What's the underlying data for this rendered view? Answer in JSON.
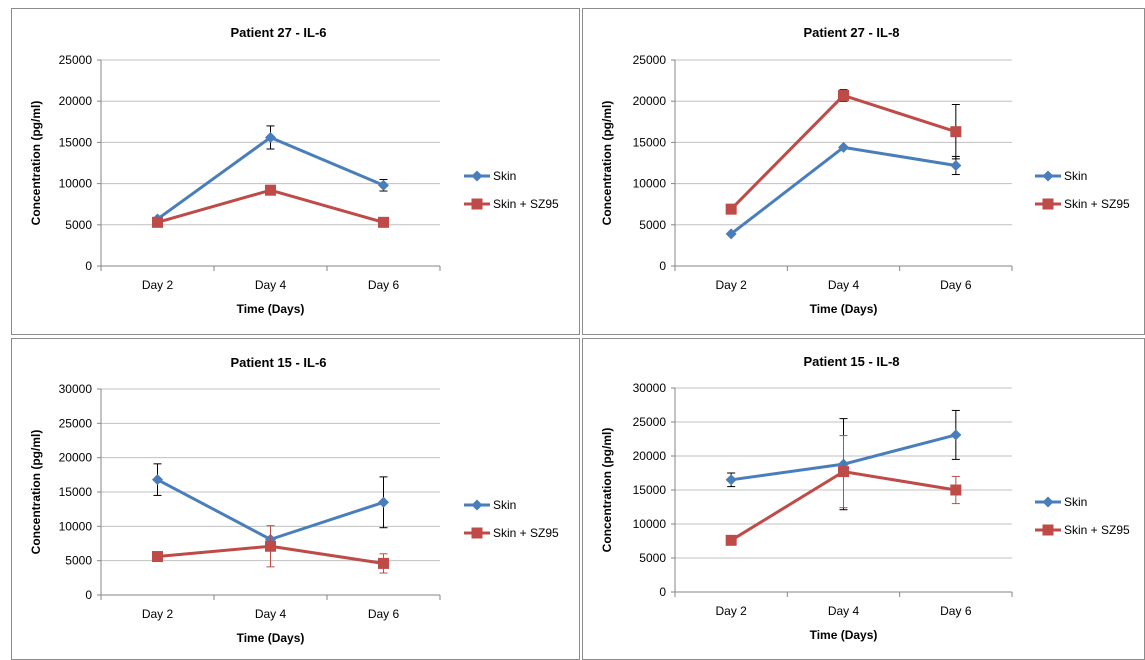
{
  "colors": {
    "skin": "#4a7ebb",
    "skin_sz95": "#be4b48",
    "grid": "#c0c0c0",
    "axis": "#868686",
    "error_bar": "#000000",
    "error_bar_alt": "#be4b48"
  },
  "chart_data": [
    {
      "type": "line",
      "title": "Patient 27 - IL-6",
      "xlabel": "Time (Days)",
      "ylabel": "Concentration (pg/ml)",
      "categories": [
        "Day 2",
        "Day 4",
        "Day 6"
      ],
      "ylim": [
        0,
        25000
      ],
      "yticks": [
        0,
        5000,
        10000,
        15000,
        20000,
        25000
      ],
      "grid": true,
      "legend": "right",
      "series": [
        {
          "name": "Skin",
          "marker": "diamond",
          "values": [
            5700,
            15600,
            9800
          ],
          "errors": [
            0,
            1400,
            700
          ]
        },
        {
          "name": "Skin + SZ95",
          "marker": "square",
          "values": [
            5300,
            9200,
            5300
          ],
          "errors": [
            0,
            0,
            0
          ]
        }
      ]
    },
    {
      "type": "line",
      "title": "Patient 27 - IL-8",
      "xlabel": "Time (Days)",
      "ylabel": "Concentration (pg/ml)",
      "categories": [
        "Day 2",
        "Day 4",
        "Day 6"
      ],
      "ylim": [
        0,
        25000
      ],
      "yticks": [
        0,
        5000,
        10000,
        15000,
        20000,
        25000
      ],
      "grid": true,
      "legend": "right",
      "series": [
        {
          "name": "Skin",
          "marker": "diamond",
          "values": [
            3900,
            14400,
            12200
          ],
          "errors": [
            0,
            0,
            1100
          ]
        },
        {
          "name": "Skin + SZ95",
          "marker": "square",
          "values": [
            6900,
            20700,
            16300
          ],
          "errors": [
            0,
            700,
            3300
          ]
        }
      ]
    },
    {
      "type": "line",
      "title": "Patient 15 - IL-6",
      "xlabel": "Time (Days)",
      "ylabel": "Concentration (pg/ml)",
      "categories": [
        "Day 2",
        "Day 4",
        "Day 6"
      ],
      "ylim": [
        0,
        30000
      ],
      "yticks": [
        0,
        5000,
        10000,
        15000,
        20000,
        25000,
        30000
      ],
      "grid": true,
      "legend": "right",
      "series": [
        {
          "name": "Skin",
          "marker": "diamond",
          "values": [
            16800,
            8100,
            13500
          ],
          "errors": [
            2300,
            0,
            3700
          ]
        },
        {
          "name": "Skin + SZ95",
          "marker": "square",
          "values": [
            5600,
            7100,
            4600
          ],
          "errors": [
            0,
            3000,
            1400
          ],
          "error_color": "error_bar_alt"
        }
      ]
    },
    {
      "type": "line",
      "title": "Patient 15 - IL-8",
      "xlabel": "Time (Days)",
      "ylabel": "Concentration (pg/ml)",
      "categories": [
        "Day 2",
        "Day 4",
        "Day 6"
      ],
      "ylim": [
        0,
        30000
      ],
      "yticks": [
        0,
        5000,
        10000,
        15000,
        20000,
        25000,
        30000
      ],
      "grid": true,
      "legend": "right",
      "series": [
        {
          "name": "Skin",
          "marker": "diamond",
          "values": [
            16500,
            18800,
            23100
          ],
          "errors": [
            1000,
            6700,
            3600
          ]
        },
        {
          "name": "Skin + SZ95",
          "marker": "square",
          "values": [
            7600,
            17700,
            15000
          ],
          "errors": [
            0,
            5300,
            2000
          ],
          "error_color": "error_bar_alt"
        }
      ]
    }
  ]
}
